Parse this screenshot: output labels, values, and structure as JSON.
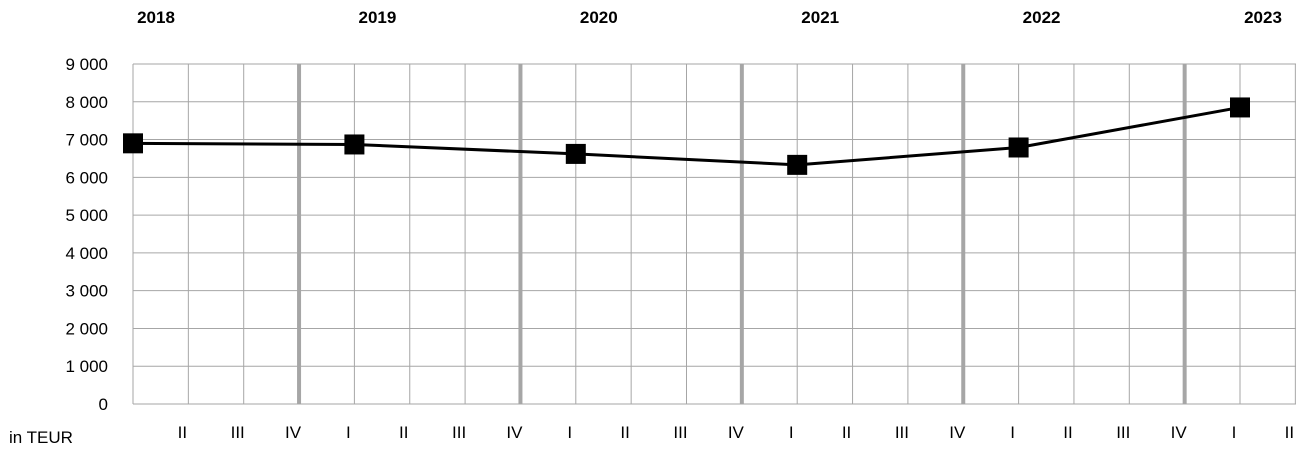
{
  "chart_data": {
    "type": "line",
    "unit_label": "in TEUR",
    "y_ticks": [
      "0",
      "1 000",
      "2 000",
      "3 000",
      "4 000",
      "5 000",
      "6 000",
      "7 000",
      "8 000",
      "9 000"
    ],
    "ylim": [
      0,
      9000
    ],
    "years": [
      "2018",
      "2019",
      "2020",
      "2021",
      "2022",
      "2023"
    ],
    "quarter_ticks": [
      "II",
      "III",
      "IV",
      "I",
      "II",
      "III",
      "IV",
      "I",
      "II",
      "III",
      "IV",
      "I",
      "II",
      "III",
      "IV",
      "I",
      "II",
      "III",
      "IV",
      "I",
      "II"
    ],
    "grid": true,
    "series": [
      {
        "x": [
          "2018 I",
          "2019 I",
          "2020 I",
          "2021 I",
          "2022 I",
          "2023 I"
        ],
        "values": [
          6900,
          6870,
          6620,
          6330,
          6790,
          7850
        ],
        "color": "#000000"
      }
    ]
  }
}
